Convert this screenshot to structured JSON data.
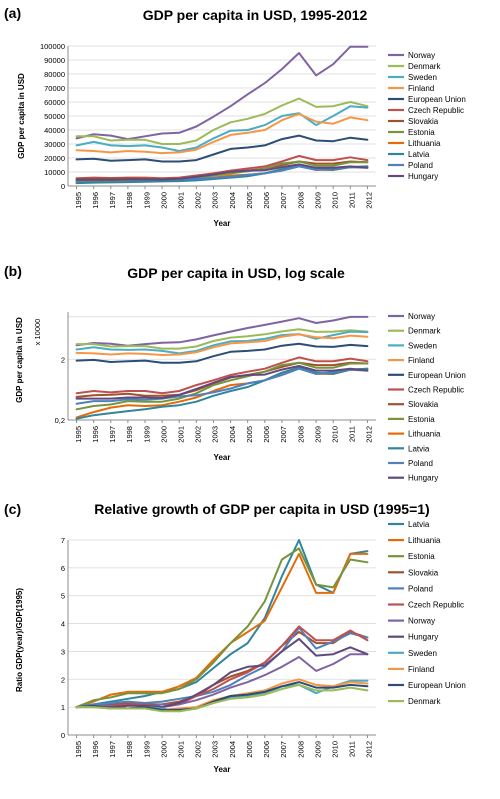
{
  "chart_data": [
    {
      "type": "line",
      "panel_label": "(a)",
      "title": "GDP per capita in USD, 1995-2012",
      "xlabel": "Year",
      "ylabel": "GDP per capita in USD",
      "ylim": [
        0,
        100000
      ],
      "yticks": [
        "0",
        "10000",
        "20000",
        "30000",
        "40000",
        "50000",
        "60000",
        "70000",
        "80000",
        "90000",
        "100000"
      ],
      "yscale": "linear",
      "grid": "horizontal",
      "legend": "right",
      "x": [
        "1995",
        "1996",
        "1997",
        "1998",
        "1999",
        "2000",
        "2001",
        "2002",
        "2003",
        "2004",
        "2005",
        "2006",
        "2007",
        "2008",
        "2009",
        "2010",
        "2011",
        "2012"
      ],
      "series": [
        {
          "name": "Norway",
          "color": "#8064a2",
          "values": [
            34000,
            37000,
            36000,
            33500,
            35500,
            37500,
            38000,
            42500,
            49500,
            57000,
            65500,
            73500,
            83500,
            95000,
            79000,
            87000,
            99500,
            99500
          ]
        },
        {
          "name": "Denmark",
          "color": "#9bbb59",
          "values": [
            35500,
            35500,
            32500,
            33000,
            33000,
            30000,
            30000,
            32500,
            40000,
            45500,
            48000,
            51500,
            57500,
            62500,
            56500,
            57000,
            60000,
            57000
          ]
        },
        {
          "name": "Sweden",
          "color": "#4bacc6",
          "values": [
            29000,
            31500,
            29000,
            28500,
            29000,
            27500,
            25000,
            27500,
            34000,
            39500,
            40000,
            43500,
            50000,
            52000,
            43500,
            50000,
            57000,
            56000
          ]
        },
        {
          "name": "Finland",
          "color": "#f79646",
          "values": [
            25500,
            25000,
            24000,
            25000,
            24500,
            23500,
            24000,
            26000,
            31500,
            36500,
            38000,
            40000,
            47000,
            51500,
            46000,
            44500,
            49000,
            47000
          ]
        },
        {
          "name": "European Union",
          "color": "#2c4d75",
          "values": [
            19000,
            19500,
            18000,
            18500,
            19000,
            17500,
            17500,
            18500,
            22500,
            26500,
            27500,
            29000,
            33500,
            36000,
            32500,
            32000,
            34500,
            33000
          ]
        },
        {
          "name": "Czech Republic",
          "color": "#c0504d",
          "values": [
            5500,
            6000,
            5700,
            6000,
            6000,
            5500,
            6000,
            7500,
            9000,
            11000,
            12500,
            14000,
            17500,
            21500,
            18500,
            18500,
            20500,
            18500
          ]
        },
        {
          "name": "Slovakia",
          "color": "#a0522d",
          "values": [
            4800,
            5100,
            5200,
            5400,
            5000,
            5000,
            5200,
            6200,
            8000,
            10000,
            11000,
            12500,
            15000,
            17500,
            16000,
            16000,
            17500,
            17000
          ]
        },
        {
          "name": "Estonia",
          "color": "#77933c",
          "values": [
            3000,
            3400,
            3600,
            4100,
            4000,
            4000,
            4500,
            5500,
            7500,
            9000,
            10500,
            12500,
            16000,
            17500,
            14500,
            14500,
            17000,
            17000
          ]
        },
        {
          "name": "Lithuania",
          "color": "#e36c09",
          "values": [
            2200,
            2700,
            3200,
            3500,
            3400,
            3500,
            4000,
            4700,
            6000,
            7500,
            8000,
            9000,
            12000,
            14500,
            11500,
            11500,
            13500,
            14000
          ]
        },
        {
          "name": "Latvia",
          "color": "#31859c",
          "values": [
            2100,
            2400,
            2600,
            2800,
            3000,
            3300,
            3500,
            4000,
            5000,
            6000,
            7000,
            9000,
            12000,
            14500,
            12000,
            11500,
            13500,
            14000
          ]
        },
        {
          "name": "Poland",
          "color": "#4f81bd",
          "values": [
            3700,
            4100,
            4100,
            4400,
            4300,
            4500,
            4900,
            5100,
            5700,
            6600,
            8000,
            9000,
            11000,
            14000,
            11500,
            12300,
            13400,
            13000
          ]
        },
        {
          "name": "Hungary",
          "color": "#604a7b",
          "values": [
            4500,
            4500,
            4500,
            4700,
            4700,
            4600,
            5200,
            6500,
            8200,
            10200,
            11000,
            11200,
            13500,
            15500,
            13000,
            13000,
            14000,
            13000
          ]
        }
      ]
    },
    {
      "type": "line",
      "panel_label": "(b)",
      "title": "GDP per capita in USD, log scale",
      "xlabel": "Year",
      "ylabel": "GDP per capita in USD",
      "yunit": "x 10000",
      "yscale": "log",
      "ylim": [
        0.2,
        12
      ],
      "yticks": [
        "0,2",
        "2"
      ],
      "grid": "horizontal",
      "legend": "right",
      "x": [
        "1995",
        "1996",
        "1997",
        "1998",
        "1999",
        "2000",
        "2001",
        "2002",
        "2003",
        "2004",
        "2005",
        "2006",
        "2007",
        "2008",
        "2009",
        "2010",
        "2011",
        "2012"
      ],
      "series": [
        {
          "name": "Norway",
          "color": "#8064a2",
          "values": [
            3.4,
            3.7,
            3.6,
            3.35,
            3.55,
            3.75,
            3.8,
            4.25,
            4.95,
            5.7,
            6.55,
            7.35,
            8.35,
            9.5,
            7.9,
            8.7,
            9.95,
            9.95
          ]
        },
        {
          "name": "Denmark",
          "color": "#9bbb59",
          "values": [
            3.55,
            3.55,
            3.25,
            3.3,
            3.3,
            3.0,
            3.0,
            3.25,
            4.0,
            4.55,
            4.8,
            5.15,
            5.75,
            6.25,
            5.65,
            5.7,
            6.0,
            5.7
          ]
        },
        {
          "name": "Sweden",
          "color": "#4bacc6",
          "values": [
            2.9,
            3.15,
            2.9,
            2.85,
            2.9,
            2.75,
            2.5,
            2.75,
            3.4,
            3.95,
            4.0,
            4.35,
            5.0,
            5.2,
            4.35,
            5.0,
            5.7,
            5.6
          ]
        },
        {
          "name": "Finland",
          "color": "#f79646",
          "values": [
            2.55,
            2.5,
            2.4,
            2.5,
            2.45,
            2.35,
            2.4,
            2.6,
            3.15,
            3.65,
            3.8,
            4.0,
            4.7,
            5.15,
            4.6,
            4.45,
            4.9,
            4.7
          ]
        },
        {
          "name": "European Union",
          "color": "#2c4d75",
          "values": [
            1.9,
            1.95,
            1.8,
            1.85,
            1.9,
            1.75,
            1.75,
            1.85,
            2.25,
            2.65,
            2.75,
            2.9,
            3.35,
            3.6,
            3.25,
            3.2,
            3.45,
            3.3
          ]
        },
        {
          "name": "Czech Republic",
          "color": "#c0504d",
          "values": [
            0.55,
            0.6,
            0.57,
            0.6,
            0.6,
            0.55,
            0.6,
            0.75,
            0.9,
            1.1,
            1.25,
            1.4,
            1.75,
            2.15,
            1.85,
            1.85,
            2.05,
            1.85
          ]
        },
        {
          "name": "Slovakia",
          "color": "#a0522d",
          "values": [
            0.48,
            0.51,
            0.52,
            0.54,
            0.5,
            0.5,
            0.52,
            0.62,
            0.8,
            1.0,
            1.1,
            1.25,
            1.5,
            1.75,
            1.6,
            1.6,
            1.75,
            1.7
          ]
        },
        {
          "name": "Estonia",
          "color": "#77933c",
          "values": [
            0.3,
            0.34,
            0.36,
            0.41,
            0.4,
            0.4,
            0.45,
            0.55,
            0.75,
            0.9,
            1.05,
            1.25,
            1.6,
            1.75,
            1.45,
            1.45,
            1.7,
            1.7
          ]
        },
        {
          "name": "Lithuania",
          "color": "#e36c09",
          "values": [
            0.22,
            0.27,
            0.32,
            0.35,
            0.34,
            0.35,
            0.4,
            0.47,
            0.6,
            0.75,
            0.8,
            0.9,
            1.2,
            1.45,
            1.15,
            1.15,
            1.35,
            1.4
          ]
        },
        {
          "name": "Latvia",
          "color": "#31859c",
          "values": [
            0.21,
            0.24,
            0.26,
            0.28,
            0.3,
            0.33,
            0.35,
            0.4,
            0.5,
            0.6,
            0.7,
            0.9,
            1.2,
            1.45,
            1.2,
            1.15,
            1.35,
            1.4
          ]
        },
        {
          "name": "Poland",
          "color": "#4f81bd",
          "values": [
            0.37,
            0.41,
            0.41,
            0.44,
            0.43,
            0.45,
            0.49,
            0.51,
            0.57,
            0.66,
            0.8,
            0.9,
            1.1,
            1.4,
            1.15,
            1.23,
            1.34,
            1.3
          ]
        },
        {
          "name": "Hungary",
          "color": "#604a7b",
          "values": [
            0.45,
            0.45,
            0.45,
            0.47,
            0.47,
            0.46,
            0.52,
            0.65,
            0.82,
            1.02,
            1.1,
            1.12,
            1.35,
            1.55,
            1.3,
            1.3,
            1.4,
            1.3
          ]
        }
      ]
    },
    {
      "type": "line",
      "panel_label": "(c)",
      "title": "Relative growth of GDP per capita in USD (1995=1)",
      "xlabel": "Year",
      "ylabel": "Ratio GDP(year)/GDP(1995)",
      "yscale": "linear",
      "ylim": [
        0,
        7
      ],
      "yticks": [
        "0",
        "1",
        "2",
        "3",
        "4",
        "5",
        "6",
        "7"
      ],
      "grid": "horizontal",
      "legend": "right",
      "x": [
        "1995",
        "1996",
        "1997",
        "1998",
        "1999",
        "2000",
        "2001",
        "2002",
        "2003",
        "2004",
        "2005",
        "2006",
        "2007",
        "2008",
        "2009",
        "2010",
        "2011",
        "2012"
      ],
      "series": [
        {
          "name": "Latvia",
          "color": "#31859c",
          "values": [
            1.0,
            1.1,
            1.2,
            1.3,
            1.4,
            1.55,
            1.65,
            1.9,
            2.4,
            2.9,
            3.3,
            4.2,
            5.7,
            7.0,
            5.4,
            5.1,
            6.5,
            6.6
          ]
        },
        {
          "name": "Lithuania",
          "color": "#e36c09",
          "values": [
            1.0,
            1.2,
            1.45,
            1.55,
            1.55,
            1.55,
            1.75,
            2.05,
            2.7,
            3.3,
            3.7,
            4.1,
            5.3,
            6.5,
            5.1,
            5.1,
            6.5,
            6.5
          ]
        },
        {
          "name": "Estonia",
          "color": "#77933c",
          "values": [
            1.0,
            1.25,
            1.35,
            1.5,
            1.5,
            1.5,
            1.65,
            2.0,
            2.6,
            3.3,
            3.9,
            4.8,
            6.3,
            6.7,
            5.4,
            5.3,
            6.3,
            6.2
          ]
        },
        {
          "name": "Slovakia",
          "color": "#a0522d",
          "values": [
            1.0,
            1.05,
            1.1,
            1.15,
            1.1,
            1.1,
            1.2,
            1.4,
            1.8,
            2.1,
            2.3,
            2.6,
            3.2,
            3.7,
            3.3,
            3.3,
            3.7,
            3.5
          ]
        },
        {
          "name": "Poland",
          "color": "#4f81bd",
          "values": [
            1.0,
            1.1,
            1.15,
            1.2,
            1.15,
            1.2,
            1.3,
            1.4,
            1.55,
            1.8,
            2.15,
            2.45,
            3.0,
            3.85,
            3.1,
            3.35,
            3.65,
            3.5
          ]
        },
        {
          "name": "Czech Republic",
          "color": "#c0504d",
          "values": [
            1.0,
            1.05,
            1.05,
            1.1,
            1.1,
            1.0,
            1.1,
            1.4,
            1.65,
            2.0,
            2.25,
            2.6,
            3.2,
            3.9,
            3.4,
            3.4,
            3.75,
            3.4
          ]
        },
        {
          "name": "Norway",
          "color": "#8064a2",
          "values": [
            1.0,
            1.05,
            1.05,
            0.95,
            1.0,
            1.1,
            1.1,
            1.25,
            1.45,
            1.7,
            1.9,
            2.15,
            2.45,
            2.8,
            2.3,
            2.55,
            2.9,
            2.9
          ]
        },
        {
          "name": "Hungary",
          "color": "#604a7b",
          "values": [
            1.0,
            1.0,
            1.0,
            1.05,
            1.05,
            1.0,
            1.15,
            1.45,
            1.8,
            2.25,
            2.45,
            2.5,
            3.0,
            3.45,
            2.85,
            2.9,
            3.15,
            2.9
          ]
        },
        {
          "name": "Sweden",
          "color": "#4bacc6",
          "values": [
            1.0,
            1.05,
            0.95,
            0.95,
            1.0,
            0.95,
            0.85,
            0.95,
            1.15,
            1.35,
            1.4,
            1.5,
            1.75,
            1.8,
            1.5,
            1.75,
            1.95,
            1.95
          ]
        },
        {
          "name": "Finland",
          "color": "#f79646",
          "values": [
            1.0,
            1.0,
            0.95,
            0.95,
            0.95,
            0.9,
            0.95,
            1.0,
            1.25,
            1.4,
            1.5,
            1.6,
            1.85,
            2.0,
            1.8,
            1.75,
            1.9,
            1.85
          ]
        },
        {
          "name": "European Union",
          "color": "#2c4d75",
          "values": [
            1.0,
            1.05,
            0.95,
            0.95,
            1.0,
            0.9,
            0.9,
            0.95,
            1.2,
            1.4,
            1.45,
            1.55,
            1.75,
            1.9,
            1.7,
            1.7,
            1.8,
            1.75
          ]
        },
        {
          "name": "Denmark",
          "color": "#9bbb59",
          "values": [
            1.0,
            1.0,
            0.95,
            0.95,
            0.95,
            0.85,
            0.85,
            0.95,
            1.15,
            1.3,
            1.35,
            1.45,
            1.65,
            1.8,
            1.6,
            1.6,
            1.7,
            1.6
          ]
        }
      ]
    }
  ]
}
